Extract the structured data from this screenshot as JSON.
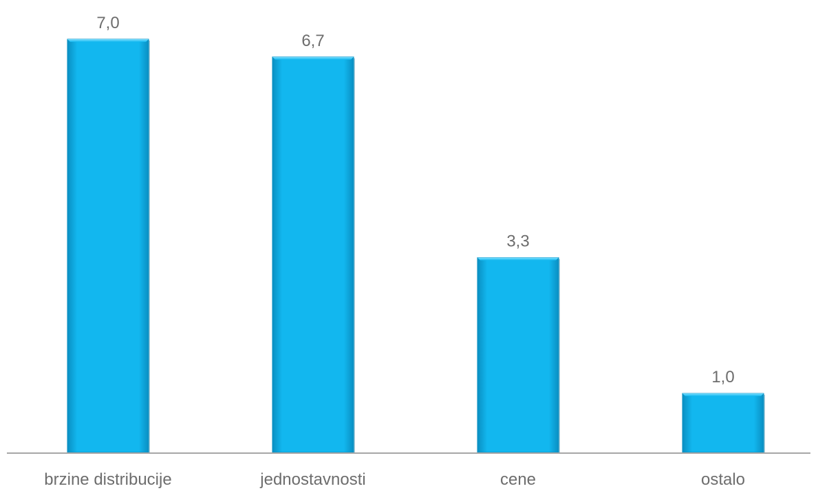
{
  "chart_data": {
    "type": "bar",
    "categories": [
      "brzine distribucije",
      "jednostavnosti",
      "cene",
      "ostalo"
    ],
    "values": [
      7.0,
      6.7,
      3.3,
      1.0
    ],
    "value_labels": [
      "7,0",
      "6,7",
      "3,3",
      "1,0"
    ],
    "title": "",
    "xlabel": "",
    "ylabel": "",
    "ylim": [
      0,
      7.0
    ],
    "grid": false,
    "colors": {
      "bar": "#12b7ef",
      "bar_dark": "#0a8fc2",
      "bar_light": "#7fe0ff",
      "axis": "#a6a6a6",
      "text": "#6d6d6d"
    }
  }
}
